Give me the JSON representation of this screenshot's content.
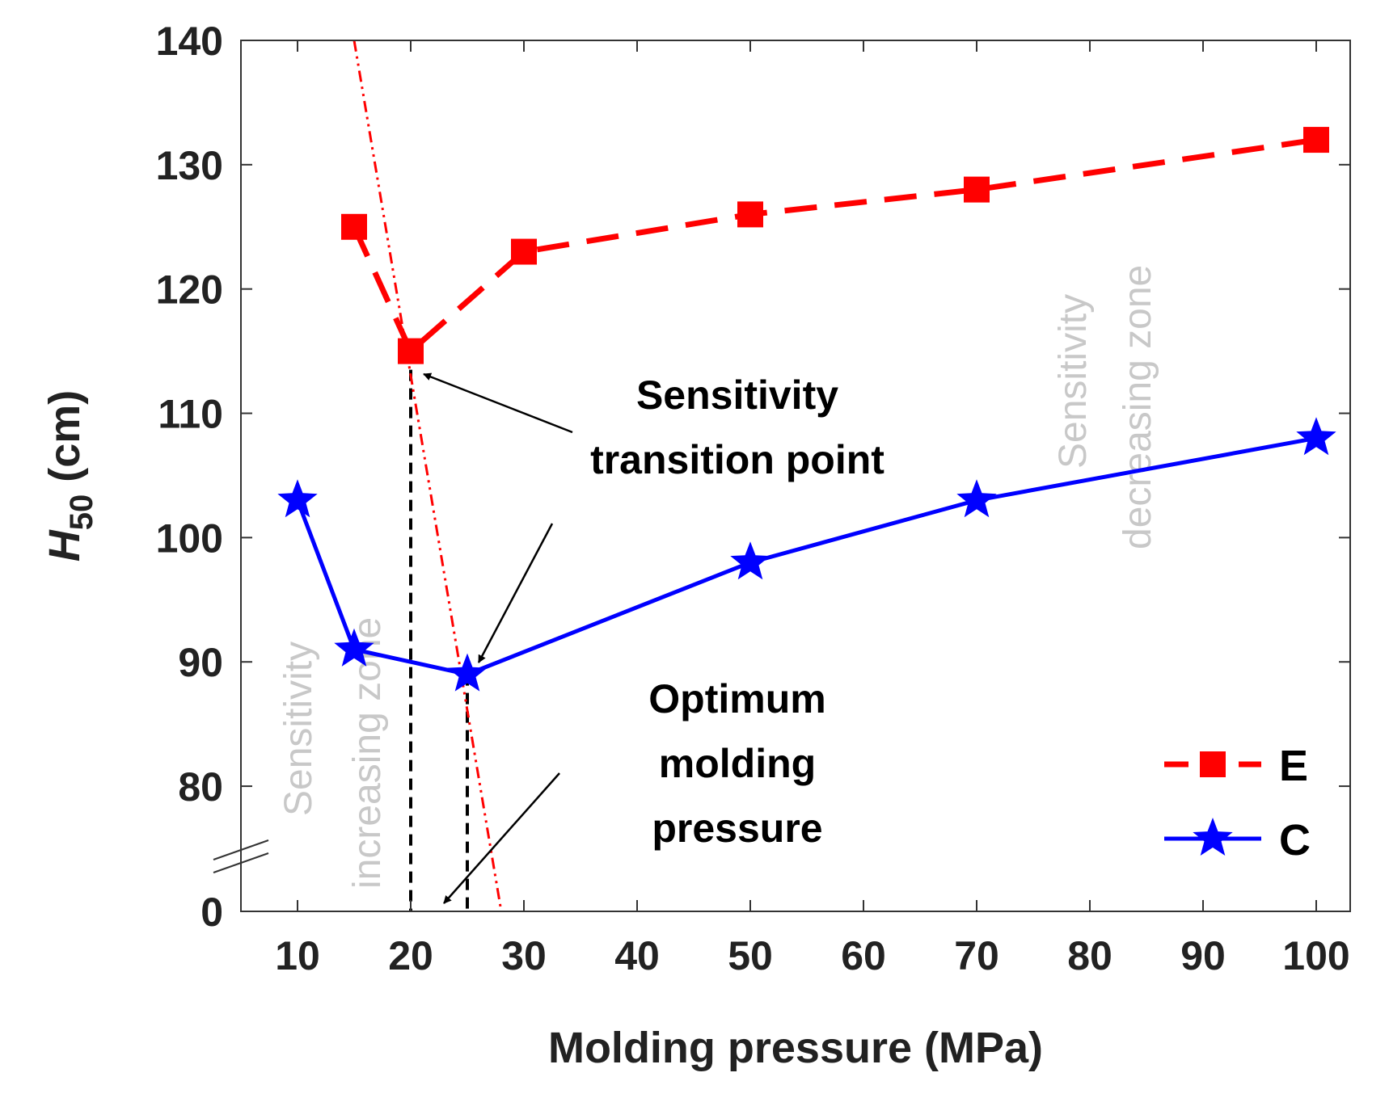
{
  "chart_data": {
    "type": "line",
    "title": "",
    "xlabel": "Molding pressure (MPa)",
    "ylabel": {
      "base": "H",
      "sub": "50",
      "rest": " (cm)"
    },
    "xlim": [
      5,
      103
    ],
    "x_ticks": [
      10,
      20,
      30,
      40,
      50,
      60,
      70,
      80,
      90,
      100
    ],
    "y_ticks": [
      0,
      80,
      90,
      100,
      110,
      120,
      130,
      140
    ],
    "y_axis_break": {
      "below": 0,
      "above": 75
    },
    "series": [
      {
        "name": "E",
        "color": "#ff0000",
        "linestyle": "dashed",
        "marker": "square",
        "points": [
          {
            "x": 15,
            "y": 125
          },
          {
            "x": 20,
            "y": 115
          },
          {
            "x": 30,
            "y": 123
          },
          {
            "x": 50,
            "y": 126
          },
          {
            "x": 70,
            "y": 128
          },
          {
            "x": 100,
            "y": 132
          }
        ]
      },
      {
        "name": "C",
        "color": "#0000ff",
        "linestyle": "solid",
        "marker": "star",
        "points": [
          {
            "x": 10,
            "y": 103
          },
          {
            "x": 15,
            "y": 91
          },
          {
            "x": 25,
            "y": 89
          },
          {
            "x": 50,
            "y": 98
          },
          {
            "x": 70,
            "y": 103
          },
          {
            "x": 100,
            "y": 108
          }
        ]
      }
    ],
    "trend_line": {
      "color": "#ff0000",
      "linestyle": "dash-dot-dot",
      "from": {
        "x": 15,
        "y": 140
      },
      "to": {
        "x": 28,
        "y": 0
      }
    },
    "vertical_markers": [
      {
        "x": 20,
        "y": 115
      },
      {
        "x": 25,
        "y": 89
      }
    ],
    "annotations": {
      "transition_lines": [
        "Sensitivity",
        "transition point"
      ],
      "optimum_lines": [
        "Optimum",
        "molding",
        "pressure"
      ],
      "zone_increasing_lines": [
        "Sensitivity",
        "increasing zone"
      ],
      "zone_decreasing_lines": [
        "Sensitivity",
        "decreasing zone"
      ]
    },
    "legend": {
      "position": "bottom-right",
      "entries": [
        "E",
        "C"
      ]
    }
  }
}
